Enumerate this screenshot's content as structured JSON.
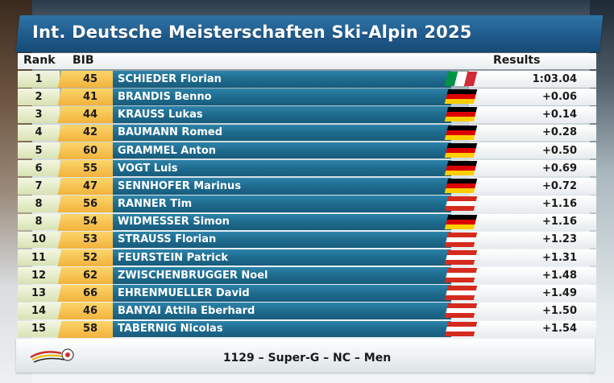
{
  "title": "Int. Deutsche Meisterschaften Ski-Alpin 2025",
  "headers": {
    "rank": "Rank",
    "bib": "BIB",
    "results": "Results"
  },
  "flag_colors": {
    "GER": [
      "#000000",
      "#DD0000",
      "#FFCE00"
    ],
    "AUT": [
      "#D52B1E",
      "#FFFFFF",
      "#D52B1E"
    ],
    "ITA": [
      "#009246",
      "#FFFFFF",
      "#CE2B37"
    ]
  },
  "rows": [
    {
      "rank": "1",
      "bib": "45",
      "name": "SCHIEDER Florian",
      "flag": "it",
      "flag_icon": "italy-flag-icon",
      "result": "1:03.04"
    },
    {
      "rank": "2",
      "bib": "41",
      "name": "BRANDIS Benno",
      "flag": "de",
      "flag_icon": "germany-flag-icon",
      "result": "+0.06"
    },
    {
      "rank": "3",
      "bib": "44",
      "name": "KRAUSS Lukas",
      "flag": "de",
      "flag_icon": "germany-flag-icon",
      "result": "+0.14"
    },
    {
      "rank": "4",
      "bib": "42",
      "name": "BAUMANN Romed",
      "flag": "de",
      "flag_icon": "germany-flag-icon",
      "result": "+0.28"
    },
    {
      "rank": "5",
      "bib": "60",
      "name": "GRAMMEL Anton",
      "flag": "de",
      "flag_icon": "germany-flag-icon",
      "result": "+0.50"
    },
    {
      "rank": "6",
      "bib": "55",
      "name": "VOGT Luis",
      "flag": "de",
      "flag_icon": "germany-flag-icon",
      "result": "+0.69"
    },
    {
      "rank": "7",
      "bib": "47",
      "name": "SENNHOFER Marinus",
      "flag": "de",
      "flag_icon": "germany-flag-icon",
      "result": "+0.72"
    },
    {
      "rank": "8",
      "bib": "56",
      "name": "RANNER Tim",
      "flag": "at",
      "flag_icon": "austria-flag-icon",
      "result": "+1.16"
    },
    {
      "rank": "8",
      "bib": "54",
      "name": "WIDMESSER Simon",
      "flag": "de",
      "flag_icon": "germany-flag-icon",
      "result": "+1.16"
    },
    {
      "rank": "10",
      "bib": "53",
      "name": "STRAUSS Florian",
      "flag": "at",
      "flag_icon": "austria-flag-icon",
      "result": "+1.23"
    },
    {
      "rank": "11",
      "bib": "52",
      "name": "FEURSTEIN Patrick",
      "flag": "at",
      "flag_icon": "austria-flag-icon",
      "result": "+1.31"
    },
    {
      "rank": "12",
      "bib": "62",
      "name": "ZWISCHENBRUGGER Noel",
      "flag": "at",
      "flag_icon": "austria-flag-icon",
      "result": "+1.48"
    },
    {
      "rank": "13",
      "bib": "66",
      "name": "EHRENMUELLER David",
      "flag": "at",
      "flag_icon": "austria-flag-icon",
      "result": "+1.49"
    },
    {
      "rank": "14",
      "bib": "46",
      "name": "BANYAI Attila Eberhard",
      "flag": "at",
      "flag_icon": "austria-flag-icon",
      "result": "+1.50"
    },
    {
      "rank": "15",
      "bib": "58",
      "name": "TABERNIG Nicolas",
      "flag": "at",
      "flag_icon": "austria-flag-icon",
      "result": "+1.54"
    }
  ],
  "footer": {
    "text": "1129 – Super-G – NC – Men",
    "logo_icon": "ski-federation-logo-icon"
  }
}
